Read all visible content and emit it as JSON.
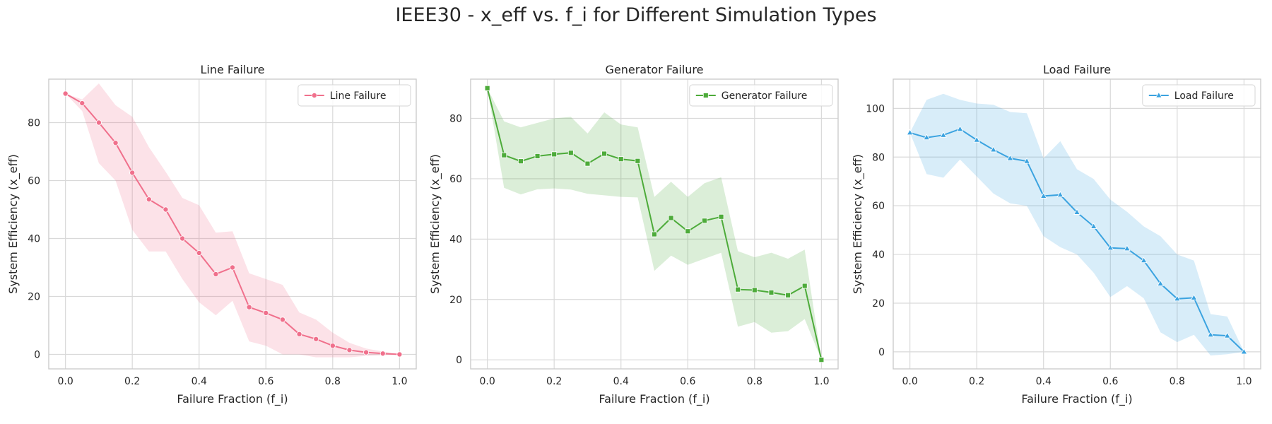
{
  "figure": {
    "title": "IEEE30 - x_eff vs. f_i for Different Simulation Types"
  },
  "chart_data": [
    {
      "type": "line",
      "title": "Line Failure",
      "xlabel": "Failure Fraction (f_i)",
      "ylabel": "System Efficiency (x_eff)",
      "xlim": [
        -0.05,
        1.05
      ],
      "ylim": [
        -5,
        95
      ],
      "xticks": [
        "0.0",
        "0.2",
        "0.4",
        "0.6",
        "0.8",
        "1.0"
      ],
      "yticks": [
        "0",
        "20",
        "40",
        "60",
        "80"
      ],
      "grid": true,
      "legend": "upper right",
      "color": "#f0708c",
      "marker": "circle",
      "series": [
        {
          "name": "Line Failure",
          "x": [
            0,
            0.05,
            0.1,
            0.15,
            0.2,
            0.25,
            0.3,
            0.35,
            0.4,
            0.45,
            0.5,
            0.55,
            0.6,
            0.65,
            0.7,
            0.75,
            0.8,
            0.85,
            0.9,
            0.95,
            1.0
          ],
          "y": [
            90,
            86.7,
            80,
            73,
            62.7,
            53.5,
            50,
            40,
            35,
            27.7,
            30,
            16.3,
            14.3,
            12,
            7,
            5.3,
            3,
            1.5,
            0.7,
            0.3,
            0
          ],
          "ci_low": [
            90,
            84,
            66,
            60,
            43,
            35.5,
            35.5,
            26,
            18,
            13.5,
            18.5,
            4.5,
            3,
            0,
            0,
            -1,
            -1,
            -1,
            -0.5,
            -0.3,
            0
          ],
          "ci_high": [
            90,
            88,
            93.5,
            86,
            82,
            71.5,
            63,
            54,
            51.5,
            42,
            42.5,
            28,
            26,
            24,
            14.5,
            12,
            7.5,
            4,
            2,
            1,
            0
          ]
        }
      ]
    },
    {
      "type": "line",
      "title": "Generator Failure",
      "xlabel": "Failure Fraction (f_i)",
      "ylabel": "System Efficiency (x_eff)",
      "xlim": [
        -0.05,
        1.05
      ],
      "ylim": [
        -3,
        93
      ],
      "xticks": [
        "0.0",
        "0.2",
        "0.4",
        "0.6",
        "0.8",
        "1.0"
      ],
      "yticks": [
        "0",
        "20",
        "40",
        "60",
        "80"
      ],
      "grid": true,
      "legend": "upper right",
      "color": "#4dab3a",
      "marker": "square",
      "series": [
        {
          "name": "Generator Failure",
          "x": [
            0,
            0.05,
            0.1,
            0.15,
            0.2,
            0.25,
            0.3,
            0.35,
            0.4,
            0.45,
            0.5,
            0.55,
            0.6,
            0.65,
            0.7,
            0.75,
            0.8,
            0.85,
            0.9,
            0.95,
            1.0
          ],
          "y": [
            90,
            67.8,
            65.8,
            67.5,
            68.1,
            68.6,
            65,
            68.3,
            66.5,
            65.9,
            41.6,
            47,
            42.6,
            46.1,
            47.4,
            23.3,
            23.1,
            22.3,
            21.4,
            24.5,
            0
          ],
          "ci_low": [
            90,
            57,
            54.8,
            56.5,
            56.8,
            56.4,
            55,
            54.5,
            54,
            53.8,
            29.5,
            34.5,
            31.5,
            33.5,
            35.5,
            11,
            12.5,
            9,
            9.5,
            13.5,
            0
          ],
          "ci_high": [
            90,
            79,
            77,
            78.5,
            80,
            80.5,
            75,
            82,
            78,
            77,
            54,
            59,
            54,
            58.5,
            60.5,
            36,
            34,
            35.5,
            33.5,
            36.5,
            0
          ]
        }
      ]
    },
    {
      "type": "line",
      "title": "Load Failure",
      "xlabel": "Failure Fraction (f_i)",
      "ylabel": "System Efficiency (x_eff)",
      "xlim": [
        -0.05,
        1.05
      ],
      "ylim": [
        -7,
        112
      ],
      "xticks": [
        "0.0",
        "0.2",
        "0.4",
        "0.6",
        "0.8",
        "1.0"
      ],
      "yticks": [
        "0",
        "20",
        "40",
        "60",
        "80",
        "100"
      ],
      "grid": true,
      "legend": "upper right",
      "color": "#3ba3e0",
      "marker": "triangle",
      "series": [
        {
          "name": "Load Failure",
          "x": [
            0,
            0.05,
            0.1,
            0.15,
            0.2,
            0.25,
            0.3,
            0.35,
            0.4,
            0.45,
            0.5,
            0.55,
            0.6,
            0.65,
            0.7,
            0.75,
            0.8,
            0.85,
            0.9,
            0.95,
            1.0
          ],
          "y": [
            90,
            88,
            89,
            91.5,
            87,
            83,
            79.5,
            78.3,
            64,
            64.5,
            57.3,
            51.5,
            42.7,
            42.4,
            37.5,
            28,
            21.8,
            22.2,
            7,
            6.6,
            0
          ],
          "ci_low": [
            90,
            73,
            71.5,
            79,
            72,
            65,
            61,
            60,
            47.5,
            43,
            40,
            32.5,
            22.5,
            27,
            22,
            8,
            4,
            7,
            -1.5,
            -1,
            0
          ],
          "ci_high": [
            90,
            103.5,
            106,
            103.5,
            102,
            101.5,
            98.5,
            98,
            79.5,
            86.5,
            75,
            71,
            62.5,
            57.5,
            51.5,
            47.5,
            40,
            37.5,
            15.5,
            14.5,
            0
          ]
        }
      ]
    }
  ]
}
